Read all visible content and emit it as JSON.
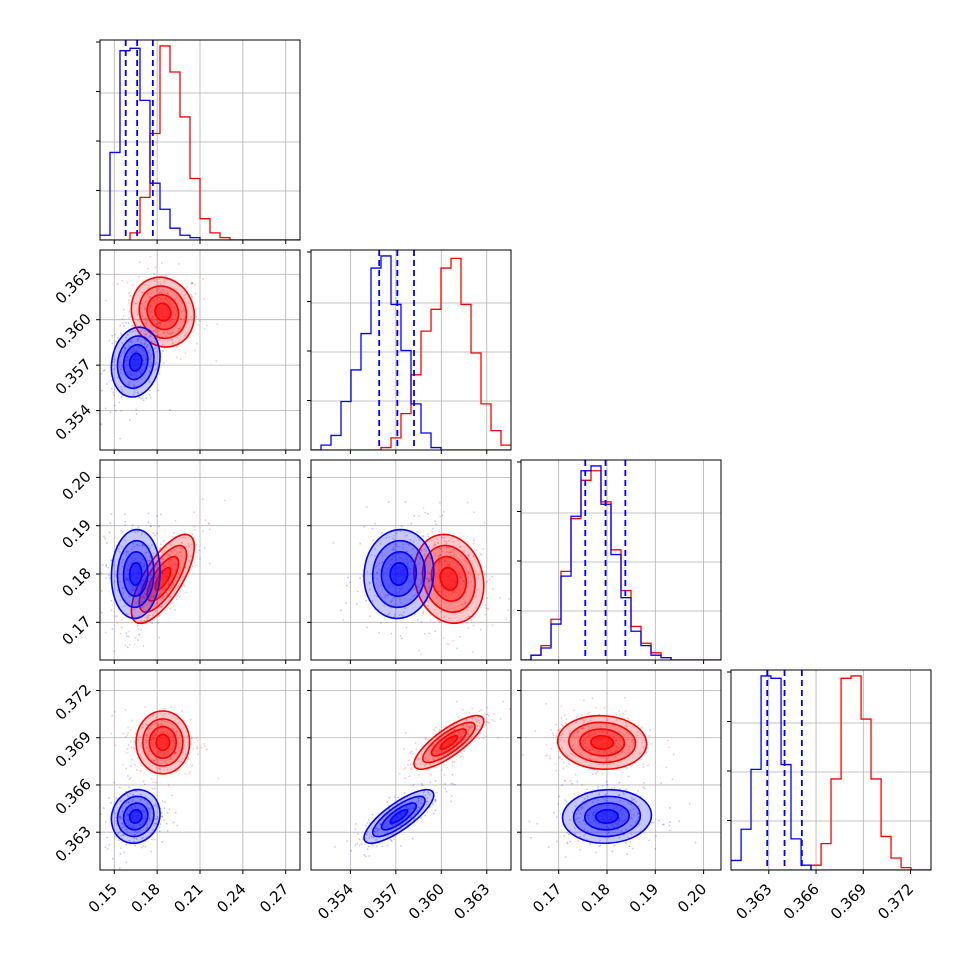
{
  "colors": {
    "series_a": "#ff0000",
    "series_b": "#0000ff",
    "grid": "#b0b0b0",
    "axis": "#000000"
  },
  "chart_data": {
    "type": "corner",
    "grid": true,
    "legend": "none",
    "title": "",
    "xlabel": "",
    "ylabel": "",
    "variables": [
      {
        "range": [
          0.14,
          0.28
        ],
        "ticks": [
          0.15,
          0.18,
          0.21,
          0.24,
          0.27
        ],
        "tick_labels": [
          "0.15",
          "0.18",
          "0.21",
          "0.24",
          "0.27"
        ]
      },
      {
        "range": [
          0.3514,
          0.3646
        ],
        "ticks": [
          0.354,
          0.357,
          0.36,
          0.363
        ],
        "tick_labels": [
          "0.354",
          "0.357",
          "0.360",
          "0.363"
        ]
      },
      {
        "range": [
          0.1622,
          0.2036
        ],
        "ticks": [
          0.17,
          0.18,
          0.19,
          0.2
        ],
        "tick_labels": [
          "0.17",
          "0.18",
          "0.19",
          "0.20"
        ]
      },
      {
        "range": [
          0.3606,
          0.3733
        ],
        "ticks": [
          0.363,
          0.366,
          0.369,
          0.372
        ],
        "tick_labels": [
          "0.363",
          "0.366",
          "0.369",
          "0.372"
        ]
      }
    ],
    "series": [
      {
        "color": "#ff0000",
        "mean": [
          0.184,
          0.3605,
          0.179,
          0.3687
        ],
        "sigma": [
          0.011,
          0.00115,
          0.0046,
          0.00085
        ],
        "corr": [
          [
            0,
            1,
            -0.1
          ],
          [
            0,
            2,
            0.72
          ],
          [
            0,
            3,
            0.0
          ],
          [
            1,
            2,
            -0.15
          ],
          [
            1,
            3,
            0.8
          ],
          [
            2,
            3,
            -0.05
          ]
        ]
      },
      {
        "color": "#0000ff",
        "mean": [
          0.165,
          0.3572,
          0.18,
          0.364
        ],
        "sigma": [
          0.0085,
          0.00115,
          0.0046,
          0.00085
        ],
        "corr": [
          [
            0,
            1,
            0.15
          ],
          [
            0,
            2,
            0.05
          ],
          [
            0,
            3,
            0.1
          ],
          [
            1,
            2,
            0.05
          ],
          [
            1,
            3,
            0.8
          ],
          [
            2,
            3,
            0.05
          ]
        ]
      }
    ],
    "quantile_lines": {
      "color": "#0000ff",
      "style": "dashed",
      "values": [
        [
          0.158,
          0.166,
          0.177
        ],
        [
          0.3559,
          0.3571,
          0.3582
        ],
        [
          0.1755,
          0.1797,
          0.1838
        ],
        [
          0.3629,
          0.364,
          0.3651
        ]
      ]
    },
    "histograms": [
      {
        "bins": [
          0.14,
          0.147,
          0.154,
          0.161,
          0.168,
          0.175,
          0.182,
          0.189,
          0.196,
          0.203,
          0.21,
          0.217,
          0.224,
          0.231,
          0.238,
          0.245,
          0.252,
          0.259,
          0.266,
          0.273,
          0.28
        ],
        "series": [
          [
            0,
            0,
            0,
            3,
            18,
            45,
            82,
            71,
            52,
            26,
            9,
            3,
            1,
            0,
            0,
            0,
            0,
            0,
            0,
            0
          ],
          [
            2,
            37,
            80,
            81,
            59,
            24,
            13,
            5,
            2,
            1,
            0,
            0,
            0,
            0,
            0,
            0,
            0,
            0,
            0,
            0
          ]
        ]
      },
      {
        "bins": [
          0.3514,
          0.35206,
          0.35272,
          0.35338,
          0.35404,
          0.3547,
          0.35536,
          0.35602,
          0.35668,
          0.35734,
          0.358,
          0.35866,
          0.35932,
          0.35998,
          0.36064,
          0.3613,
          0.36196,
          0.36262,
          0.36328,
          0.36394,
          0.3646
        ],
        "series": [
          [
            0,
            0,
            0,
            0,
            0,
            0,
            0,
            1,
            5,
            15,
            31,
            49,
            58,
            75,
            79,
            60,
            40,
            19,
            8,
            2
          ],
          [
            0,
            2,
            6,
            20,
            33,
            48,
            75,
            80,
            60,
            41,
            19,
            7,
            1,
            0,
            0,
            0,
            0,
            0,
            0,
            0
          ]
        ]
      },
      {
        "bins": [
          0.1622,
          0.16427,
          0.16634,
          0.16841,
          0.17048,
          0.17255,
          0.17462,
          0.17669,
          0.17876,
          0.18083,
          0.1829,
          0.18497,
          0.18704,
          0.18911,
          0.19118,
          0.19325,
          0.19532,
          0.19739,
          0.19946,
          0.20153,
          0.2036
        ],
        "series": [
          [
            0,
            2,
            6,
            17,
            37,
            59,
            75,
            79,
            66,
            46,
            29,
            14,
            7,
            3,
            1,
            0,
            0,
            0,
            0,
            0
          ],
          [
            0,
            2,
            5,
            15,
            35,
            60,
            79,
            81,
            65,
            44,
            26,
            12,
            6,
            2,
            1,
            0,
            0,
            0,
            0,
            0
          ]
        ]
      },
      {
        "bins": [
          0.3606,
          0.36124,
          0.36187,
          0.36251,
          0.36314,
          0.36378,
          0.36441,
          0.36505,
          0.36568,
          0.36632,
          0.36695,
          0.36759,
          0.36822,
          0.36886,
          0.36949,
          0.37013,
          0.37076,
          0.3714,
          0.37203,
          0.37267,
          0.3733
        ],
        "series": [
          [
            0,
            0,
            0,
            0,
            0,
            0,
            0,
            0,
            2,
            11,
            38,
            80,
            81,
            63,
            38,
            14,
            5,
            1,
            0,
            0
          ],
          [
            4,
            17,
            42,
            81,
            80,
            44,
            13,
            2,
            0,
            0,
            0,
            0,
            0,
            0,
            0,
            0,
            0,
            0,
            0,
            0
          ]
        ]
      }
    ]
  }
}
